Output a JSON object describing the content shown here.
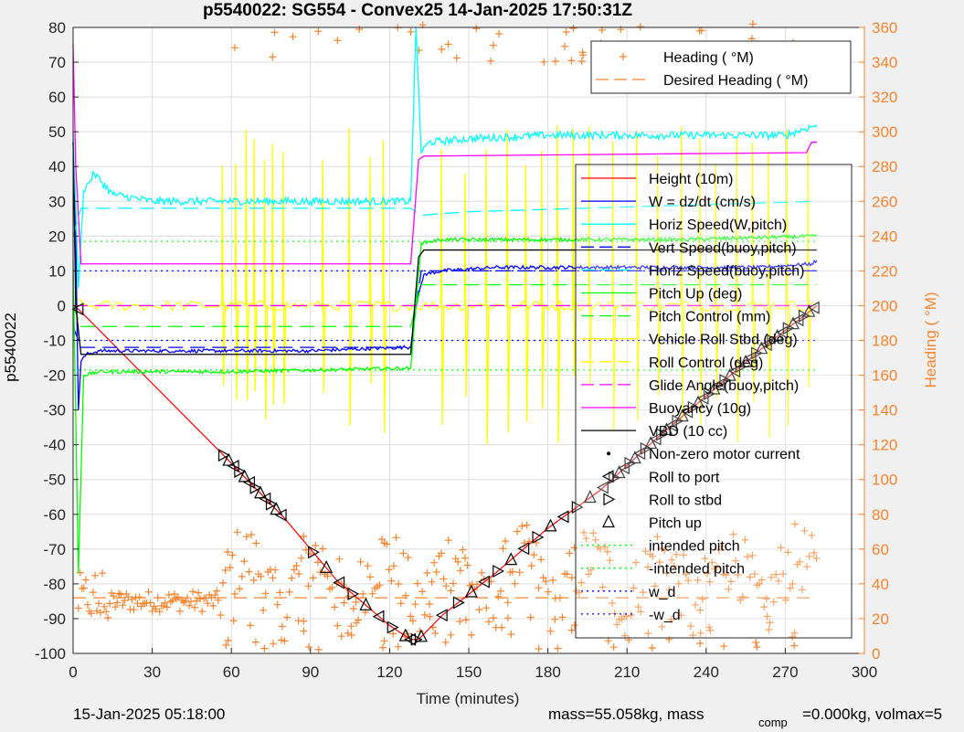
{
  "chart_data": {
    "type": "line",
    "title": "p5540022: SG554 - Convex25 14-Jan-2025 17:50:31Z",
    "xlabel": "Time (minutes)",
    "ylabel_left": "p5540022",
    "ylabel_right": "Heading (  °M)",
    "xlim": [
      0,
      300
    ],
    "ylim_left": [
      -100,
      80
    ],
    "ylim_right": [
      0,
      360
    ],
    "x_ticks": [
      0,
      30,
      60,
      90,
      120,
      150,
      180,
      210,
      240,
      270,
      300
    ],
    "y_ticks_left": [
      -100,
      -90,
      -80,
      -70,
      -60,
      -50,
      -40,
      -30,
      -20,
      -10,
      0,
      10,
      20,
      30,
      40,
      50,
      60,
      70,
      80
    ],
    "y_ticks_right": [
      0,
      20,
      40,
      60,
      80,
      100,
      120,
      140,
      160,
      180,
      200,
      220,
      240,
      260,
      280,
      300,
      320,
      340,
      360
    ],
    "grid": true,
    "legend_top": {
      "placement": "top-right",
      "entries": [
        {
          "label": "Heading (  °M)",
          "color": "#f7842f",
          "style": "plus"
        },
        {
          "label": "Desired Heading (    °M)",
          "color": "#f7842f",
          "style": "dash"
        }
      ]
    },
    "legend_main": {
      "placement": "right",
      "entries": [
        {
          "label": "Height (10m)",
          "color": "#ff0000",
          "style": "solid"
        },
        {
          "label": "W = dz/dt (cm/s)",
          "color": "#0000ff",
          "style": "solid"
        },
        {
          "label": "Horiz Speed(W,pitch)",
          "color": "#00ffff",
          "style": "solid"
        },
        {
          "label": "Vert Speed(buoy,pitch)",
          "color": "#0000ff",
          "style": "dash"
        },
        {
          "label": "Horiz Speed(buoy,pitch)",
          "color": "#00ffff",
          "style": "dash"
        },
        {
          "label": "Pitch Up (deg)",
          "color": "#00ff00",
          "style": "solid"
        },
        {
          "label": "Pitch Control (mm)",
          "color": "#00ff00",
          "style": "dash"
        },
        {
          "label": "Vehicle Roll Stbd (deg)",
          "color": "#ffff00",
          "style": "solid"
        },
        {
          "label": "Roll Control (deg)",
          "color": "#ffff00",
          "style": "dash"
        },
        {
          "label": "Glide Angle(buoy,pitch)",
          "color": "#ff00ff",
          "style": "dash"
        },
        {
          "label": "Buoyancy (10g)",
          "color": "#ff00ff",
          "style": "solid"
        },
        {
          "label": "VBD (10 cc)",
          "color": "#000000",
          "style": "solid"
        },
        {
          "label": "Non-zero motor current",
          "color": "#000000",
          "style": "dot"
        },
        {
          "label": "Roll to port",
          "color": "#000000",
          "style": "tri-left"
        },
        {
          "label": "Roll to stbd",
          "color": "#000000",
          "style": "tri-right"
        },
        {
          "label": "Pitch up",
          "color": "#000000",
          "style": "tri-up"
        },
        {
          "label": "intended pitch",
          "color": "#00ff00",
          "style": "dot-line"
        },
        {
          "label": "-intended pitch",
          "color": "#00ff00",
          "style": "dot-line"
        },
        {
          "label": "w_d",
          "color": "#0000ff",
          "style": "dot-line"
        },
        {
          "label": "-w_d",
          "color": "#0000ff",
          "style": "dot-line"
        }
      ]
    },
    "series": [
      {
        "name": "Height (10m)",
        "color": "#ff0000",
        "x": [
          0,
          2,
          57,
          80,
          100,
          120,
          128,
          131,
          140,
          160,
          180,
          200,
          220,
          240,
          260,
          282
        ],
        "y": [
          0,
          -1,
          -43,
          -61,
          -79,
          -92,
          -96,
          -96,
          -89,
          -77,
          -64,
          -53,
          -39,
          -26,
          -13,
          0
        ]
      },
      {
        "name": "W = dz/dt (cm/s)",
        "color": "#0000ff",
        "x": [
          0,
          1,
          2,
          3,
          5,
          10,
          30,
          60,
          90,
          125,
          128,
          130,
          133,
          140,
          160,
          180,
          200,
          230,
          260,
          280,
          282
        ],
        "y": [
          47,
          20,
          -30,
          -16,
          -14,
          -13,
          -13,
          -13,
          -13,
          -12,
          -12,
          0,
          9,
          10,
          11,
          11,
          11,
          11,
          11,
          12,
          13
        ]
      },
      {
        "name": "Horiz Speed(W,pitch)",
        "color": "#00ffff",
        "x": [
          0,
          2,
          4,
          8,
          15,
          30,
          60,
          90,
          120,
          128,
          130,
          132,
          135,
          150,
          180,
          210,
          240,
          270,
          282
        ],
        "y": [
          50,
          5,
          33,
          38,
          32,
          30,
          30,
          30,
          30,
          30,
          80,
          44,
          47,
          48,
          49,
          49,
          49,
          49,
          52
        ]
      },
      {
        "name": "Vert Speed(buoy,pitch)",
        "color": "#0000ff",
        "dash": true,
        "x": [
          0,
          3,
          128,
          132,
          282
        ],
        "y": [
          -6,
          -12,
          -12,
          10,
          10
        ]
      },
      {
        "name": "Horiz Speed(buoy,pitch)",
        "color": "#00ffff",
        "dash": true,
        "x": [
          0,
          3,
          128,
          132,
          150,
          282
        ],
        "y": [
          20,
          28,
          28,
          26,
          27,
          30
        ]
      },
      {
        "name": "Pitch Up (deg)",
        "color": "#00ff00",
        "x": [
          0,
          2,
          4,
          10,
          60,
          125,
          128,
          132,
          140,
          180,
          230,
          282
        ],
        "y": [
          13,
          -77,
          -20,
          -19,
          -19,
          -18,
          -18,
          18,
          19,
          19,
          19,
          20
        ]
      },
      {
        "name": "Pitch Control (mm)",
        "color": "#00ff00",
        "dash": true,
        "x": [
          0,
          3,
          128,
          132,
          282
        ],
        "y": [
          0,
          -6,
          -6,
          6,
          6
        ]
      },
      {
        "name": "Glide Angle(buoy,pitch)",
        "color": "#ff00ff",
        "dash": true,
        "x": [
          0,
          282
        ],
        "y": [
          0,
          0
        ]
      },
      {
        "name": "Buoyancy (10g)",
        "color": "#ff00ff",
        "x": [
          0,
          1,
          3,
          128,
          131,
          133,
          278,
          280,
          282
        ],
        "y": [
          75,
          40,
          12,
          12,
          42,
          43,
          44,
          47,
          47
        ]
      },
      {
        "name": "VBD (10 cc)",
        "color": "#000000",
        "x": [
          0,
          1,
          3,
          128,
          131,
          133,
          282
        ],
        "y": [
          47,
          0,
          -14,
          -14,
          14,
          16,
          16
        ]
      },
      {
        "name": "Desired Heading (    °M)",
        "color": "#f7842f",
        "dash": true,
        "axis": "right",
        "x": [
          0,
          282
        ],
        "y": [
          32,
          32
        ]
      }
    ],
    "reference_lines": [
      {
        "name": "intended pitch",
        "color": "#00ff00",
        "y": 18.5
      },
      {
        "name": "-intended pitch",
        "color": "#00ff00",
        "y": -18.5
      },
      {
        "name": "w_d",
        "color": "#0000ff",
        "y": 10
      },
      {
        "name": "-w_d",
        "color": "#0000ff",
        "y": -10
      }
    ],
    "markers": {
      "roll_pitch_times": [
        2,
        57,
        59,
        61,
        63,
        65,
        67,
        69,
        71,
        73,
        75,
        77,
        79,
        91,
        96,
        101,
        106,
        111,
        116,
        121,
        126,
        128,
        130,
        132,
        140,
        146,
        151,
        156,
        161,
        166,
        171,
        176,
        181,
        186,
        191,
        196,
        201,
        205,
        207,
        209,
        211,
        213,
        215,
        217,
        219,
        221,
        223,
        225,
        227,
        229,
        231,
        233,
        235,
        237,
        239,
        241,
        243,
        245,
        247,
        249,
        251,
        253,
        255,
        257,
        259,
        261,
        263,
        265,
        267,
        269,
        271,
        273,
        275,
        277,
        279,
        281
      ]
    },
    "roll_spikes_x": [
      57,
      62,
      66,
      69,
      73,
      76,
      80,
      95,
      105,
      113,
      118,
      140,
      149,
      157,
      165,
      172,
      178,
      184,
      190,
      196,
      205,
      214,
      222,
      231,
      238,
      244,
      252,
      258,
      264,
      271,
      279
    ]
  },
  "footer": {
    "time": "15-Jan-2025 05:18:00",
    "mass": "mass=55.058kg, mass",
    "comp_sub": "comp",
    "rest": "=0.000kg, volmax=5"
  },
  "colors": {
    "background": "#f0f0f0",
    "plot_area": "#ffffff",
    "heading_axis": "#f7842f",
    "grid": "#dcdcdc"
  }
}
